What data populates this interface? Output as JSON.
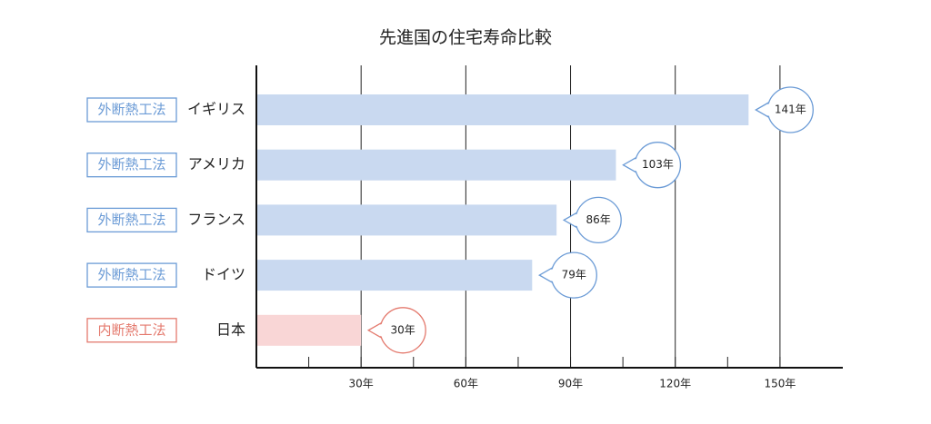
{
  "chart_data": {
    "type": "hbar",
    "title": "先進国の住宅寿命比較",
    "categories": [
      "イギリス",
      "アメリカ",
      "フランス",
      "ドイツ",
      "日本"
    ],
    "methods": [
      "外断熱工法",
      "外断熱工法",
      "外断熱工法",
      "外断熱工法",
      "内断熱工法"
    ],
    "values": [
      141,
      103,
      86,
      79,
      30
    ],
    "value_labels": [
      "141年",
      "103年",
      "86年",
      "79年",
      "30年"
    ],
    "colors": [
      "#c9d9f0",
      "#c9d9f0",
      "#c9d9f0",
      "#c9d9f0",
      "#f9d6d6"
    ],
    "accent_colors": [
      "#6b9bd6",
      "#6b9bd6",
      "#6b9bd6",
      "#6b9bd6",
      "#e47a6e"
    ],
    "xlim": [
      0,
      168
    ],
    "xticks": [
      {
        "value": 30,
        "label": "30年"
      },
      {
        "value": 60,
        "label": "60年"
      },
      {
        "value": 90,
        "label": "90年"
      },
      {
        "value": 120,
        "label": "120年"
      },
      {
        "value": 150,
        "label": "150年"
      }
    ],
    "minor_xticks": [
      15,
      45,
      75,
      105,
      135
    ],
    "grid": true
  }
}
